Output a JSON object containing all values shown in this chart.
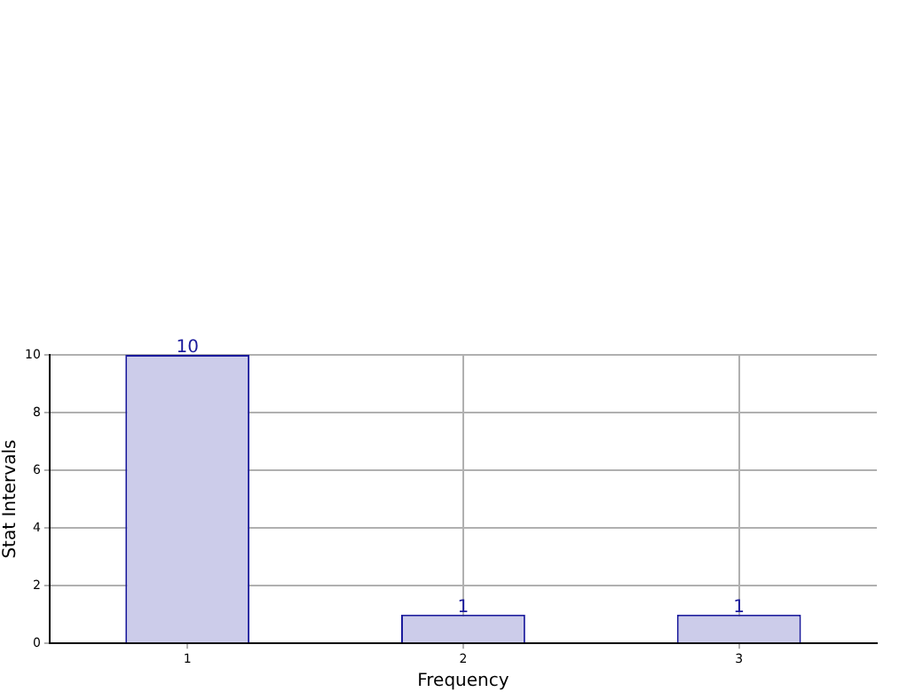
{
  "chart_data": {
    "type": "bar",
    "xlabel": "Frequency",
    "ylabel": "Stat Intervals",
    "categories": [
      "1",
      "2",
      "3"
    ],
    "values": [
      10,
      1,
      1
    ],
    "color": "#ccccea",
    "ylim": [
      0,
      10
    ],
    "yticks": [
      0,
      2,
      4,
      6,
      8,
      10
    ],
    "grid": true,
    "data_labels": true
  }
}
